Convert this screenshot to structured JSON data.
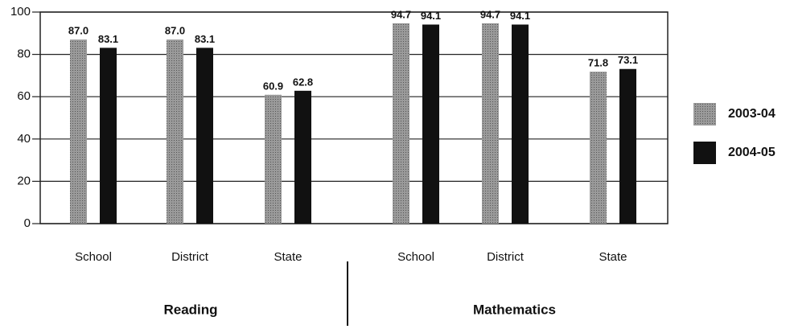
{
  "chart_data": {
    "type": "bar",
    "categories": [
      "School",
      "District",
      "State",
      "School",
      "District",
      "State"
    ],
    "groups": [
      "Reading",
      "Mathematics"
    ],
    "series": [
      {
        "name": "2003-04",
        "color": "#8a8a8a",
        "values": [
          87.0,
          87.0,
          60.9,
          94.7,
          94.7,
          71.8
        ],
        "value_labels": [
          "87.0",
          "87.0",
          "60.9",
          "94.7",
          "94.7",
          "71.8"
        ]
      },
      {
        "name": "2004-05",
        "color": "#111111",
        "values": [
          83.1,
          83.1,
          62.8,
          94.1,
          94.1,
          73.1
        ],
        "value_labels": [
          "83.1",
          "83.1",
          "62.8",
          "94.1",
          "94.1",
          "73.1"
        ]
      }
    ],
    "ylim": [
      0,
      100
    ],
    "yticks": [
      0,
      20,
      40,
      60,
      80,
      100
    ],
    "grid": true,
    "legend": "right"
  }
}
